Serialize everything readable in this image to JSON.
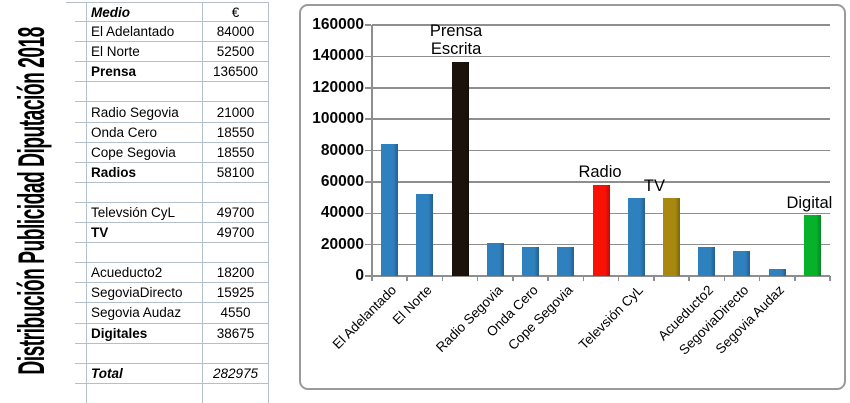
{
  "title": "Distribución Publicidad Diputación 2018",
  "table": {
    "headers": {
      "medio": "Medio",
      "euro": "€"
    },
    "rows": [
      {
        "label": "El Adelantado",
        "value": "84000",
        "style": "normal"
      },
      {
        "label": "El Norte",
        "value": "52500",
        "style": "normal"
      },
      {
        "label": "Prensa",
        "value": "136500",
        "style": "bold"
      },
      {
        "label": "",
        "value": "",
        "style": "blank"
      },
      {
        "label": "Radio Segovia",
        "value": "21000",
        "style": "normal"
      },
      {
        "label": "Onda Cero",
        "value": "18550",
        "style": "normal"
      },
      {
        "label": "Cope Segovia",
        "value": "18550",
        "style": "normal"
      },
      {
        "label": "Radios",
        "value": "58100",
        "style": "bold"
      },
      {
        "label": "",
        "value": "",
        "style": "blank"
      },
      {
        "label": "Televsión CyL",
        "value": "49700",
        "style": "normal"
      },
      {
        "label": "TV",
        "value": "49700",
        "style": "bold"
      },
      {
        "label": "",
        "value": "",
        "style": "blank"
      },
      {
        "label": "Acueducto2",
        "value": "18200",
        "style": "normal"
      },
      {
        "label": "SegoviaDirecto",
        "value": "15925",
        "style": "normal"
      },
      {
        "label": "Segovia Audaz",
        "value": "4550",
        "style": "normal"
      },
      {
        "label": "Digitales",
        "value": "38675",
        "style": "bold"
      },
      {
        "label": "",
        "value": "",
        "style": "blank"
      },
      {
        "label": "Total",
        "value": "282975",
        "style": "total"
      },
      {
        "label": "",
        "value": "",
        "style": "blank"
      }
    ]
  },
  "chart_data": {
    "type": "bar",
    "title": "",
    "xlabel": "",
    "ylabel": "",
    "ylim": [
      0,
      160000
    ],
    "yticks": [
      0,
      20000,
      40000,
      60000,
      80000,
      100000,
      120000,
      140000,
      160000
    ],
    "grid": true,
    "legend": false,
    "bars": [
      {
        "category": "El Adelantado",
        "value": 84000,
        "color": "#2E80BF",
        "annotation": ""
      },
      {
        "category": "El Norte",
        "value": 52500,
        "color": "#2E80BF",
        "annotation": ""
      },
      {
        "category": "",
        "value": 136500,
        "color": "#1B130B",
        "annotation": "Prensa\nEscrita"
      },
      {
        "category": "Radio Segovia",
        "value": 21000,
        "color": "#2E80BF",
        "annotation": ""
      },
      {
        "category": "Onda Cero",
        "value": 18550,
        "color": "#2E80BF",
        "annotation": ""
      },
      {
        "category": "Cope Segovia",
        "value": 18550,
        "color": "#2E80BF",
        "annotation": ""
      },
      {
        "category": "",
        "value": 58100,
        "color": "#FA1106",
        "annotation": "Radio"
      },
      {
        "category": "Televsión CyL",
        "value": 49700,
        "color": "#2E80BF",
        "annotation": ""
      },
      {
        "category": "",
        "value": 49700,
        "color": "#A8880F",
        "annotation": "TV"
      },
      {
        "category": "Acueducto2",
        "value": 18200,
        "color": "#2E80BF",
        "annotation": ""
      },
      {
        "category": "SegoviaDirecto",
        "value": 15925,
        "color": "#2E80BF",
        "annotation": ""
      },
      {
        "category": "Segovia Audaz",
        "value": 4550,
        "color": "#2E80BF",
        "annotation": ""
      },
      {
        "category": "",
        "value": 38675,
        "color": "#07B22B",
        "annotation": "Digital"
      }
    ]
  },
  "colors": {
    "bar_blue": "#2E80BF",
    "bar_black": "#1B130B",
    "bar_red": "#FA1106",
    "bar_olive": "#A8880F",
    "bar_green": "#07B22B",
    "gridline": "#8E8E8E",
    "panel_border": "#9A9A9A",
    "table_border": "#B3BFCD"
  }
}
